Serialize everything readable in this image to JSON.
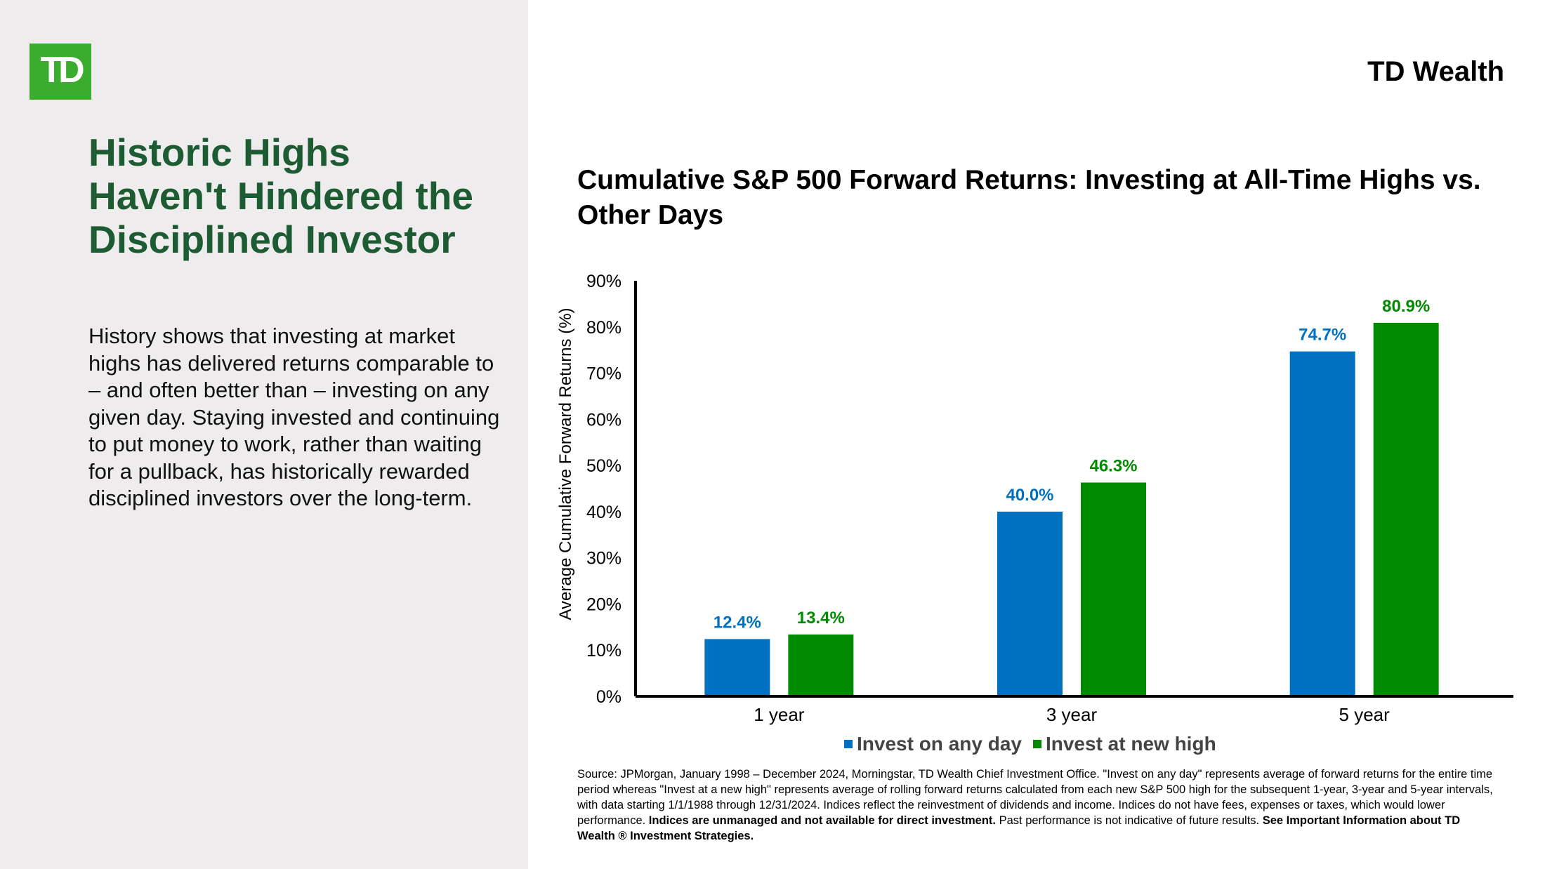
{
  "brand": "TD Wealth",
  "logo_text": "TD",
  "headline": "Historic Highs Haven't Hindered the Disciplined Investor",
  "body": "History shows that investing at market highs has delivered returns comparable to – and often better than – investing on any given day. Staying invested and continuing to put money to work, rather than waiting for a pullback, has historically rewarded disciplined investors over the long-term.",
  "colors": {
    "green_brand": "#3aad2e",
    "headline_green": "#1d5b33",
    "series_blue": "#0070c0",
    "series_green": "#008a00"
  },
  "chart_data": {
    "type": "bar",
    "title": "Cumulative S&P 500 Forward Returns: Investing at All-Time Highs vs. Other Days",
    "xlabel": "",
    "ylabel": "Average Cumulative Forward Returns (%)",
    "categories": [
      "1 year",
      "3 year",
      "5 year"
    ],
    "ylim": [
      0,
      90
    ],
    "yticks": [
      0,
      10,
      20,
      30,
      40,
      50,
      60,
      70,
      80,
      90
    ],
    "ytick_labels": [
      "0%",
      "10%",
      "20%",
      "30%",
      "40%",
      "50%",
      "60%",
      "70%",
      "80%",
      "90%"
    ],
    "grid": false,
    "legend": "bottom-center",
    "series": [
      {
        "name": "Invest on any day",
        "values": [
          12.4,
          40.0,
          74.7
        ],
        "labels": [
          "12.4%",
          "40.0%",
          "74.7%"
        ],
        "color": "#0070c0"
      },
      {
        "name": "Invest at new high",
        "values": [
          13.4,
          46.3,
          80.9
        ],
        "labels": [
          "13.4%",
          "46.3%",
          "80.9%"
        ],
        "color": "#008a00"
      }
    ]
  },
  "source": {
    "text": "Source: JPMorgan, January 1998 – December 2024, Morningstar, TD Wealth Chief Investment Office. \"Invest on any day\" represents average of forward returns for the entire time period whereas \"Invest at a new high\" represents average of rolling forward returns calculated from each new S&P 500 high for the subsequent 1-year, 3-year and 5-year intervals, with data starting 1/1/1988 through 12/31/2024. Indices reflect the reinvestment of dividends and income. Indices do not have fees, expenses or taxes, which would lower performance. ",
    "bold1": "Indices are unmanaged and not available for direct investment.",
    "text2": " Past performance is not indicative of future results. ",
    "bold2": "See Important Information about TD Wealth ® Investment Strategies."
  }
}
